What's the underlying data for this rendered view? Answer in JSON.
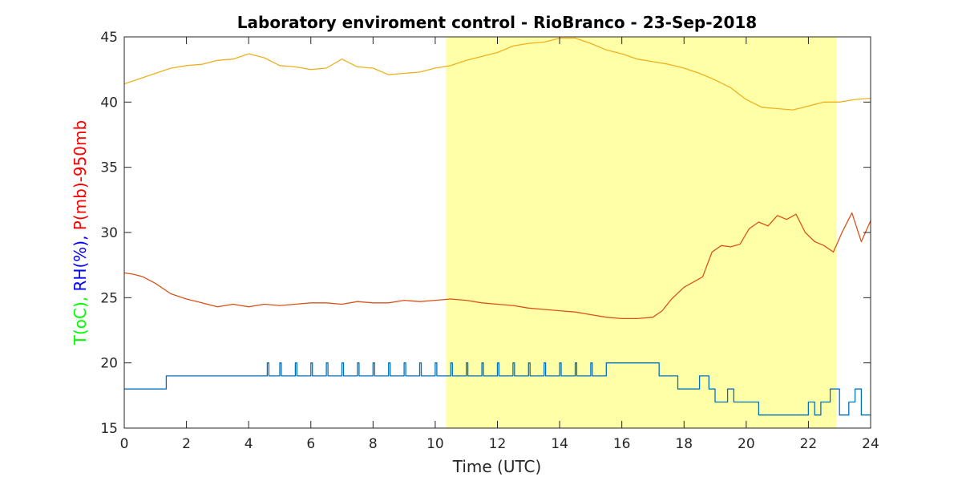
{
  "chart_data": {
    "type": "line",
    "title": "Laboratory enviroment control - RioBranco - 23-Sep-2018",
    "xlabel": "Time (UTC)",
    "ylabel_parts": [
      {
        "text": "T(oC), ",
        "color": "#00ff00"
      },
      {
        "text": "RH(%), ",
        "color": "#0000ff"
      },
      {
        "text": "P(mb)-950mb",
        "color": "#ff0000"
      }
    ],
    "xlim": [
      0,
      24
    ],
    "ylim": [
      15,
      45
    ],
    "x_ticks": [
      0,
      2,
      4,
      6,
      8,
      10,
      12,
      14,
      16,
      18,
      20,
      22,
      24
    ],
    "y_ticks": [
      15,
      20,
      25,
      30,
      35,
      40,
      45
    ],
    "grid": false,
    "daylight_band": {
      "x_start": 10.35,
      "x_end": 22.9,
      "color": "#ffffa8"
    },
    "series": [
      {
        "color": "#edb120",
        "x": [
          0,
          0.5,
          1,
          1.5,
          2,
          2.5,
          3,
          3.5,
          4,
          4.5,
          5,
          5.5,
          6,
          6.5,
          7,
          7.5,
          8,
          8.5,
          9,
          9.5,
          10,
          10.5,
          11,
          11.5,
          12,
          12.5,
          13,
          13.5,
          14,
          14.5,
          15,
          15.5,
          16,
          16.5,
          17,
          17.5,
          18,
          18.5,
          19,
          19.5,
          20,
          20.5,
          21,
          21.5,
          22,
          22.5,
          23,
          23.5,
          24
        ],
        "values": [
          41.4,
          41.8,
          42.2,
          42.6,
          42.8,
          42.9,
          43.2,
          43.3,
          43.7,
          43.4,
          42.8,
          42.7,
          42.5,
          42.6,
          43.3,
          42.7,
          42.6,
          42.1,
          42.2,
          42.3,
          42.6,
          42.8,
          43.2,
          43.5,
          43.8,
          44.3,
          44.5,
          44.6,
          44.9,
          44.9,
          44.5,
          44.0,
          43.7,
          43.3,
          43.1,
          42.9,
          42.6,
          42.2,
          41.7,
          41.1,
          40.2,
          39.6,
          39.5,
          39.4,
          39.7,
          40.0,
          40.0,
          40.2,
          40.3
        ]
      },
      {
        "color": "#d95319",
        "x": [
          0,
          0.3,
          0.6,
          1,
          1.5,
          2,
          2.5,
          3,
          3.5,
          4,
          4.5,
          5,
          5.5,
          6,
          6.5,
          7,
          7.5,
          8,
          8.5,
          9,
          9.5,
          10,
          10.5,
          11,
          11.5,
          12,
          12.5,
          13,
          13.5,
          14,
          14.5,
          15,
          15.5,
          16,
          16.5,
          17,
          17.3,
          17.6,
          18,
          18.3,
          18.6,
          18.9,
          19.2,
          19.5,
          19.8,
          20.1,
          20.4,
          20.7,
          21,
          21.3,
          21.6,
          21.9,
          22.2,
          22.5,
          22.8,
          23.1,
          23.4,
          23.7,
          24
        ],
        "values": [
          26.9,
          26.8,
          26.6,
          26.1,
          25.3,
          24.9,
          24.6,
          24.3,
          24.5,
          24.3,
          24.5,
          24.4,
          24.5,
          24.6,
          24.6,
          24.5,
          24.7,
          24.6,
          24.6,
          24.8,
          24.7,
          24.8,
          24.9,
          24.8,
          24.6,
          24.5,
          24.4,
          24.2,
          24.1,
          24.0,
          23.9,
          23.7,
          23.5,
          23.4,
          23.4,
          23.5,
          24.0,
          24.9,
          25.8,
          26.2,
          26.6,
          28.5,
          29.0,
          28.9,
          29.1,
          30.3,
          30.8,
          30.5,
          31.3,
          31.0,
          31.4,
          30.0,
          29.3,
          29.0,
          28.5,
          30.1,
          31.5,
          29.3,
          30.9
        ]
      },
      {
        "color": "#0072bd",
        "type": "step",
        "x": [
          0,
          1.35,
          4.6,
          4.65,
          5.0,
          5.05,
          5.5,
          5.55,
          6.0,
          6.05,
          6.5,
          6.55,
          7.0,
          7.05,
          7.5,
          7.55,
          8.0,
          8.05,
          8.5,
          8.55,
          9.0,
          9.05,
          9.5,
          9.55,
          10.0,
          10.05,
          10.5,
          10.55,
          11.0,
          11.05,
          11.5,
          11.55,
          12.0,
          12.05,
          12.5,
          12.55,
          13.0,
          13.05,
          13.5,
          13.55,
          14.0,
          14.05,
          14.5,
          14.55,
          15.0,
          15.05,
          15.5,
          15.55,
          17.2,
          17.5,
          17.8,
          18.5,
          18.8,
          19.0,
          19.4,
          19.6,
          20.0,
          20.4,
          20.8,
          22.0,
          22.2,
          22.4,
          22.7,
          23.0,
          23.3,
          23.5,
          23.7,
          24
        ],
        "values": [
          18,
          19,
          20,
          19,
          20,
          19,
          20,
          19,
          20,
          19,
          20,
          19,
          20,
          19,
          20,
          19,
          20,
          19,
          20,
          19,
          20,
          19,
          20,
          19,
          20,
          19,
          20,
          19,
          20,
          19,
          20,
          19,
          20,
          19,
          20,
          19,
          20,
          19,
          20,
          19,
          20,
          19,
          20,
          19,
          20,
          19,
          20,
          20,
          19,
          19,
          18,
          19,
          18,
          17,
          18,
          17,
          17,
          16,
          16,
          17,
          16,
          17,
          18,
          16,
          17,
          18,
          16,
          16
        ]
      }
    ]
  }
}
